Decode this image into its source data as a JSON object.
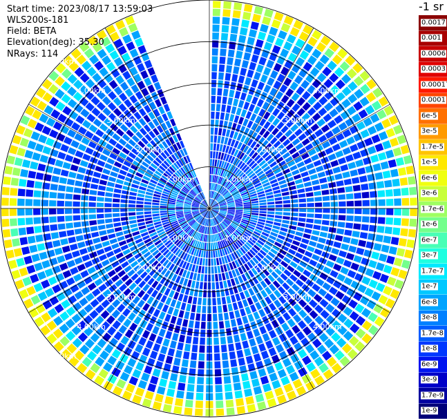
{
  "header": {
    "start_time": "Start time: 2023/08/17 13:59:03",
    "station": "WLS200s-181",
    "field": "Field: BETA",
    "elevation": "Elevation(deg): 35.30",
    "nrays": "NRays: 114"
  },
  "colorbar": {
    "unit_title": "-1 sr",
    "levels": [
      {
        "label": "0.0017",
        "color": "#8b0000"
      },
      {
        "label": "0.001",
        "color": "#a80000"
      },
      {
        "label": "0.0006",
        "color": "#c80000"
      },
      {
        "label": "0.0003",
        "color": "#e00000"
      },
      {
        "label": "0.00017",
        "color": "#ff1a00"
      },
      {
        "label": "0.0001",
        "color": "#ff4500"
      },
      {
        "label": "6e-5",
        "color": "#ff7000"
      },
      {
        "label": "3e-5",
        "color": "#ff9a00"
      },
      {
        "label": "1.7e-5",
        "color": "#ffc400"
      },
      {
        "label": "1e-5",
        "color": "#ffe800"
      },
      {
        "label": "6e-6",
        "color": "#f0ff10"
      },
      {
        "label": "3e-6",
        "color": "#c8ff3a"
      },
      {
        "label": "1.7e-6",
        "color": "#9eff62"
      },
      {
        "label": "1e-6",
        "color": "#73ff8c"
      },
      {
        "label": "6e-7",
        "color": "#48ffb6"
      },
      {
        "label": "3e-7",
        "color": "#1effe0"
      },
      {
        "label": "1.7e-7",
        "color": "#00eaff"
      },
      {
        "label": "1e-7",
        "color": "#00c8ff"
      },
      {
        "label": "6e-8",
        "color": "#00a4ff"
      },
      {
        "label": "3e-8",
        "color": "#0080ff"
      },
      {
        "label": "1.7e-8",
        "color": "#005cff"
      },
      {
        "label": "1e-8",
        "color": "#0038ff"
      },
      {
        "label": "6e-9",
        "color": "#0014f0"
      },
      {
        "label": "3e-9",
        "color": "#0000c8"
      },
      {
        "label": "1.7e-9",
        "color": "#0000a0"
      },
      {
        "label": "1e-9",
        "color": "#000078"
      }
    ]
  },
  "chart_data": {
    "type": "heatmap",
    "projection": "polar PPI scan",
    "field": "BETA",
    "unit": "-1 sr",
    "nrays": 114,
    "range_rings_km": [
      1.0,
      2.0,
      3.0,
      4.0,
      5.0
    ],
    "range_ring_labels": [
      "1.00km",
      "2.00km",
      "3.00km",
      "4.00km",
      "5.00km"
    ],
    "max_range_km": 5.0,
    "missing_sector_azimuth_deg": [
      338,
      360
    ],
    "dominant_level_range": [
      "1e-8",
      "3e-8"
    ],
    "edge_level_range": [
      "1.7e-7",
      "1e-5"
    ],
    "grid": true
  }
}
